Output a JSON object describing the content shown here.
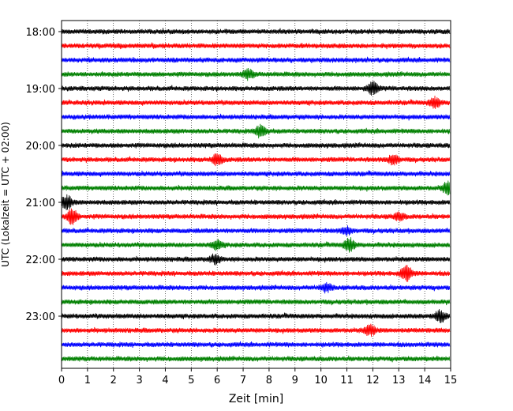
{
  "chart_data": {
    "type": "line",
    "subtype": "seismogram-helicorder",
    "xlabel": "Zeit  [min]",
    "ylabel": "UTC (Lokalzeit = UTC + 02:00)",
    "xlim": [
      0,
      15
    ],
    "x_ticks": [
      0,
      1,
      2,
      3,
      4,
      5,
      6,
      7,
      8,
      9,
      10,
      11,
      12,
      13,
      14,
      15
    ],
    "x_tick_labels": [
      "0",
      "1",
      "2",
      "3",
      "4",
      "5",
      "6",
      "7",
      "8",
      "9",
      "10",
      "11",
      "12",
      "13",
      "14",
      "15"
    ],
    "y_tick_labels": [
      "18:00",
      "19:00",
      "20:00",
      "21:00",
      "22:00",
      "23:00"
    ],
    "grid": "vertical dotted at every minute",
    "trace_interval_min": 15,
    "color_cycle": [
      "#000000",
      "#ff0000",
      "#0000ff",
      "#008000"
    ],
    "traces": [
      {
        "start": "18:00",
        "color": "#000000",
        "events": []
      },
      {
        "start": "18:15",
        "color": "#ff0000",
        "events": []
      },
      {
        "start": "18:30",
        "color": "#0000ff",
        "events": []
      },
      {
        "start": "18:45",
        "color": "#008000",
        "events": [
          {
            "t": 7.2,
            "amp": 1.6
          }
        ]
      },
      {
        "start": "19:00",
        "color": "#000000",
        "events": [
          {
            "t": 12.0,
            "amp": 2.2
          }
        ]
      },
      {
        "start": "19:15",
        "color": "#ff0000",
        "events": [
          {
            "t": 14.4,
            "amp": 1.8
          }
        ]
      },
      {
        "start": "19:30",
        "color": "#0000ff",
        "events": []
      },
      {
        "start": "19:45",
        "color": "#008000",
        "events": [
          {
            "t": 7.7,
            "amp": 2.3
          }
        ]
      },
      {
        "start": "20:00",
        "color": "#000000",
        "events": []
      },
      {
        "start": "20:15",
        "color": "#ff0000",
        "events": [
          {
            "t": 6.0,
            "amp": 2.0
          },
          {
            "t": 12.8,
            "amp": 1.9
          }
        ]
      },
      {
        "start": "20:30",
        "color": "#0000ff",
        "events": []
      },
      {
        "start": "20:45",
        "color": "#008000",
        "events": [
          {
            "t": 14.9,
            "amp": 2.2
          }
        ]
      },
      {
        "start": "21:00",
        "color": "#000000",
        "events": [
          {
            "t": 0.2,
            "amp": 2.6
          }
        ]
      },
      {
        "start": "21:15",
        "color": "#ff0000",
        "events": [
          {
            "t": 0.4,
            "amp": 2.7
          },
          {
            "t": 13.0,
            "amp": 1.3
          }
        ]
      },
      {
        "start": "21:30",
        "color": "#0000ff",
        "events": [
          {
            "t": 11.0,
            "amp": 1.3
          }
        ]
      },
      {
        "start": "21:45",
        "color": "#008000",
        "events": [
          {
            "t": 6.0,
            "amp": 1.6
          },
          {
            "t": 11.1,
            "amp": 2.3
          }
        ]
      },
      {
        "start": "22:00",
        "color": "#000000",
        "events": [
          {
            "t": 5.9,
            "amp": 1.5
          }
        ]
      },
      {
        "start": "22:15",
        "color": "#ff0000",
        "events": [
          {
            "t": 13.3,
            "amp": 3.0
          }
        ]
      },
      {
        "start": "22:30",
        "color": "#0000ff",
        "events": [
          {
            "t": 10.2,
            "amp": 1.4
          }
        ]
      },
      {
        "start": "22:45",
        "color": "#008000",
        "events": []
      },
      {
        "start": "23:00",
        "color": "#000000",
        "events": [
          {
            "t": 14.6,
            "amp": 2.0
          }
        ]
      },
      {
        "start": "23:15",
        "color": "#ff0000",
        "events": [
          {
            "t": 11.9,
            "amp": 2.0
          }
        ]
      },
      {
        "start": "23:30",
        "color": "#0000ff",
        "events": []
      },
      {
        "start": "23:45",
        "color": "#008000",
        "events": []
      }
    ]
  }
}
